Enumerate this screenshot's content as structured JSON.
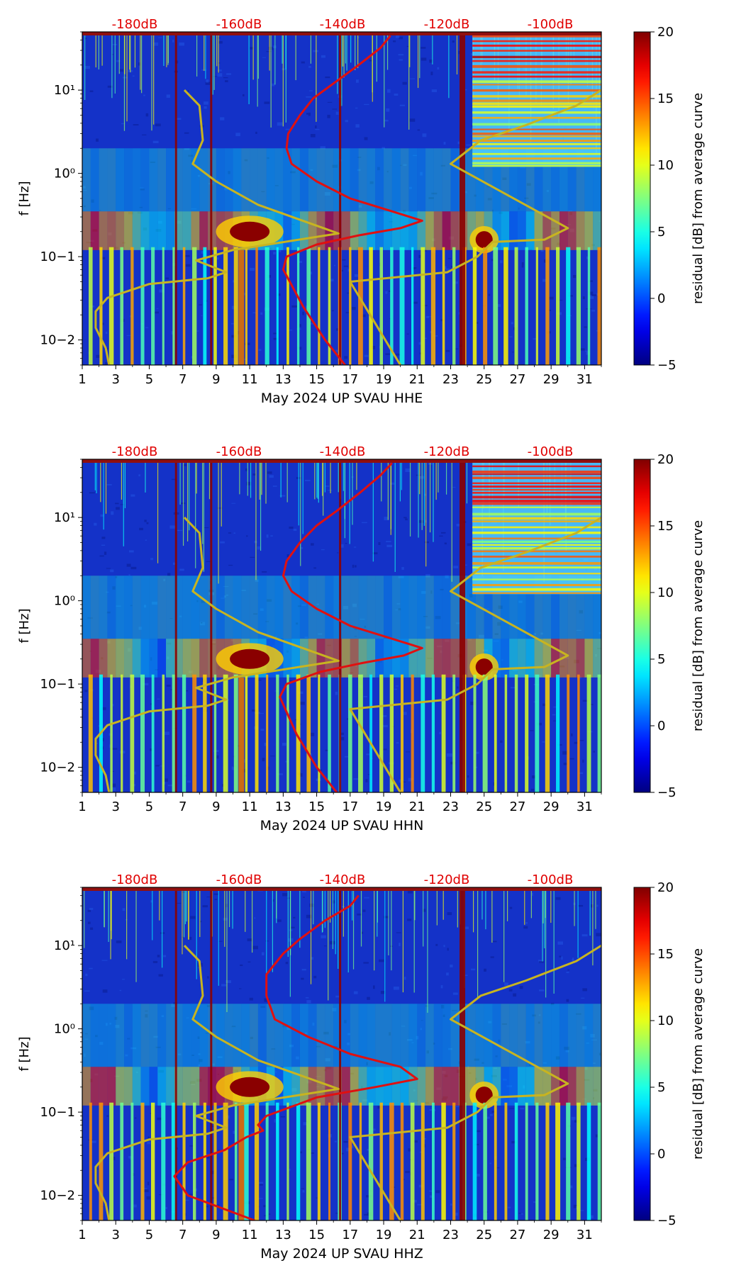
{
  "chart_data": [
    {
      "type": "heatmap",
      "title": "",
      "xlabel": "May 2024 UP SVAU  HHE",
      "ylabel": "f [Hz]",
      "x_ticks": [
        "1",
        "3",
        "5",
        "7",
        "9",
        "11",
        "13",
        "15",
        "17",
        "19",
        "21",
        "23",
        "25",
        "27",
        "29",
        "31"
      ],
      "xlim": [
        1,
        32
      ],
      "y_ticks": [
        "10−2",
        "10−1",
        "10⁰",
        "10¹"
      ],
      "ylim_hz": [
        0.005,
        50
      ],
      "yscale": "log",
      "top_axis_labels": [
        "-180dB",
        "-160dB",
        "-140dB",
        "-120dB",
        "-100dB"
      ],
      "colorbar": {
        "label": "residual [dB] from average curve",
        "ticks": [
          "−5",
          "0",
          "5",
          "10",
          "15",
          "20"
        ],
        "range": [
          -5,
          20
        ],
        "colormap": "jet"
      },
      "strong_residual_band": {
        "day_start": 24.3,
        "day_end": 32,
        "freq_min_hz": 1.2,
        "freq_max_hz": 50
      },
      "series": [
        {
          "name": "median PSD (red)",
          "color": "#e01010",
          "points": [
            [
              16.7,
              0.005
            ],
            [
              15.5,
              0.01
            ],
            [
              14.2,
              0.025
            ],
            [
              13.0,
              0.07
            ],
            [
              13.2,
              0.1
            ],
            [
              15.0,
              0.14
            ],
            [
              17.5,
              0.18
            ],
            [
              20.0,
              0.22
            ],
            [
              21.3,
              0.27
            ],
            [
              19.5,
              0.35
            ],
            [
              17.0,
              0.5
            ],
            [
              15.0,
              0.8
            ],
            [
              13.5,
              1.3
            ],
            [
              13.2,
              2.0
            ],
            [
              13.3,
              3.0
            ],
            [
              14.0,
              5.0
            ],
            [
              14.8,
              8.0
            ],
            [
              16.0,
              12.0
            ],
            [
              17.5,
              20.0
            ],
            [
              18.8,
              32.0
            ],
            [
              19.4,
              45.0
            ]
          ]
        },
        {
          "name": "noise model (yellow)",
          "color": "#c8b420",
          "points": [
            [
              2.6,
              0.005
            ],
            [
              2.4,
              0.008
            ],
            [
              1.8,
              0.014
            ],
            [
              1.8,
              0.022
            ],
            [
              2.5,
              0.032
            ],
            [
              5.0,
              0.047
            ],
            [
              8.5,
              0.055
            ],
            [
              9.6,
              0.065
            ],
            [
              7.8,
              0.09
            ],
            [
              10.0,
              0.12
            ],
            [
              16.3,
              0.19
            ],
            [
              11.5,
              0.42
            ],
            [
              9.0,
              0.8
            ],
            [
              7.6,
              1.3
            ],
            [
              8.2,
              2.5
            ],
            [
              8.0,
              6.5
            ],
            [
              7.1,
              10.0
            ]
          ]
        },
        {
          "name": "high noise model (yellow)",
          "color": "#c8b420",
          "points": [
            [
              20.0,
              0.005
            ],
            [
              17.0,
              0.05
            ],
            [
              22.8,
              0.065
            ],
            [
              24.6,
              0.1
            ],
            [
              25.5,
              0.15
            ],
            [
              28.6,
              0.16
            ],
            [
              30.0,
              0.22
            ],
            [
              23.0,
              1.3
            ],
            [
              24.8,
              2.5
            ],
            [
              27.5,
              3.8
            ],
            [
              30.5,
              6.5
            ],
            [
              32.0,
              10.0
            ]
          ]
        }
      ]
    },
    {
      "type": "heatmap",
      "title": "",
      "xlabel": "May 2024 UP SVAU  HHN",
      "ylabel": "f [Hz]",
      "x_ticks": [
        "1",
        "3",
        "5",
        "7",
        "9",
        "11",
        "13",
        "15",
        "17",
        "19",
        "21",
        "23",
        "25",
        "27",
        "29",
        "31"
      ],
      "xlim": [
        1,
        32
      ],
      "y_ticks": [
        "10−2",
        "10−1",
        "10⁰",
        "10¹"
      ],
      "ylim_hz": [
        0.005,
        50
      ],
      "yscale": "log",
      "top_axis_labels": [
        "-180dB",
        "-160dB",
        "-140dB",
        "-120dB",
        "-100dB"
      ],
      "colorbar": {
        "label": "residual [dB] from average curve",
        "ticks": [
          "−5",
          "0",
          "5",
          "10",
          "15",
          "20"
        ],
        "range": [
          -5,
          20
        ],
        "colormap": "jet"
      },
      "strong_residual_band": {
        "day_start": 24.3,
        "day_end": 32,
        "freq_min_hz": 1.2,
        "freq_max_hz": 50
      },
      "series": [
        {
          "name": "median PSD (red)",
          "color": "#e01010",
          "points": [
            [
              16.2,
              0.005
            ],
            [
              15.0,
              0.01
            ],
            [
              13.8,
              0.025
            ],
            [
              12.8,
              0.07
            ],
            [
              13.2,
              0.1
            ],
            [
              15.2,
              0.14
            ],
            [
              17.8,
              0.18
            ],
            [
              20.2,
              0.22
            ],
            [
              21.3,
              0.27
            ],
            [
              19.5,
              0.35
            ],
            [
              17.0,
              0.5
            ],
            [
              15.0,
              0.8
            ],
            [
              13.5,
              1.3
            ],
            [
              13.0,
              2.0
            ],
            [
              13.2,
              3.0
            ],
            [
              14.0,
              5.0
            ],
            [
              15.0,
              8.0
            ],
            [
              16.2,
              12.0
            ],
            [
              17.6,
              20.0
            ],
            [
              18.8,
              32.0
            ],
            [
              19.5,
              45.0
            ]
          ]
        },
        {
          "name": "noise model (yellow)",
          "color": "#c8b420",
          "points": [
            [
              2.6,
              0.005
            ],
            [
              2.4,
              0.008
            ],
            [
              1.8,
              0.014
            ],
            [
              1.8,
              0.022
            ],
            [
              2.5,
              0.032
            ],
            [
              5.0,
              0.047
            ],
            [
              8.5,
              0.055
            ],
            [
              9.6,
              0.065
            ],
            [
              7.8,
              0.09
            ],
            [
              10.0,
              0.12
            ],
            [
              16.3,
              0.19
            ],
            [
              11.5,
              0.42
            ],
            [
              9.0,
              0.8
            ],
            [
              7.6,
              1.3
            ],
            [
              8.2,
              2.5
            ],
            [
              8.0,
              6.5
            ],
            [
              7.1,
              10.0
            ]
          ]
        },
        {
          "name": "high noise model (yellow)",
          "color": "#c8b420",
          "points": [
            [
              20.0,
              0.005
            ],
            [
              17.0,
              0.05
            ],
            [
              22.8,
              0.065
            ],
            [
              24.6,
              0.1
            ],
            [
              25.5,
              0.15
            ],
            [
              28.6,
              0.16
            ],
            [
              30.0,
              0.22
            ],
            [
              23.0,
              1.3
            ],
            [
              24.8,
              2.5
            ],
            [
              27.5,
              3.8
            ],
            [
              30.5,
              6.5
            ],
            [
              32.0,
              10.0
            ]
          ]
        }
      ]
    },
    {
      "type": "heatmap",
      "title": "",
      "xlabel": "May 2024 UP SVAU  HHZ",
      "ylabel": "f [Hz]",
      "x_ticks": [
        "1",
        "3",
        "5",
        "7",
        "9",
        "11",
        "13",
        "15",
        "17",
        "19",
        "21",
        "23",
        "25",
        "27",
        "29",
        "31"
      ],
      "xlim": [
        1,
        32
      ],
      "y_ticks": [
        "10−2",
        "10−1",
        "10⁰",
        "10¹"
      ],
      "ylim_hz": [
        0.005,
        50
      ],
      "yscale": "log",
      "top_axis_labels": [
        "-180dB",
        "-160dB",
        "-140dB",
        "-120dB",
        "-100dB"
      ],
      "colorbar": {
        "label": "residual [dB] from average curve",
        "ticks": [
          "−5",
          "0",
          "5",
          "10",
          "15",
          "20"
        ],
        "range": [
          -5,
          20
        ],
        "colormap": "jet"
      },
      "strong_residual_band": null,
      "series": [
        {
          "name": "median PSD (red)",
          "color": "#e01010",
          "points": [
            [
              11.3,
              0.005
            ],
            [
              7.3,
              0.01
            ],
            [
              6.5,
              0.017
            ],
            [
              7.3,
              0.025
            ],
            [
              9.5,
              0.035
            ],
            [
              10.8,
              0.05
            ],
            [
              11.8,
              0.06
            ],
            [
              11.5,
              0.07
            ],
            [
              12.0,
              0.09
            ],
            [
              15.0,
              0.15
            ],
            [
              18.5,
              0.2
            ],
            [
              21.0,
              0.25
            ],
            [
              20.0,
              0.35
            ],
            [
              17.0,
              0.5
            ],
            [
              14.5,
              0.8
            ],
            [
              12.5,
              1.3
            ],
            [
              12.0,
              2.5
            ],
            [
              12.0,
              4.5
            ],
            [
              13.0,
              8.0
            ],
            [
              14.0,
              12.0
            ],
            [
              15.5,
              20.0
            ],
            [
              17.0,
              30.0
            ],
            [
              17.5,
              40.0
            ]
          ]
        },
        {
          "name": "noise model (yellow)",
          "color": "#c8b420",
          "points": [
            [
              2.6,
              0.005
            ],
            [
              2.4,
              0.008
            ],
            [
              1.8,
              0.014
            ],
            [
              1.8,
              0.022
            ],
            [
              2.5,
              0.032
            ],
            [
              5.0,
              0.047
            ],
            [
              8.5,
              0.055
            ],
            [
              9.6,
              0.065
            ],
            [
              7.8,
              0.09
            ],
            [
              10.0,
              0.12
            ],
            [
              16.3,
              0.19
            ],
            [
              11.5,
              0.42
            ],
            [
              9.0,
              0.8
            ],
            [
              7.6,
              1.3
            ],
            [
              8.2,
              2.5
            ],
            [
              8.0,
              6.5
            ],
            [
              7.1,
              10.0
            ]
          ]
        },
        {
          "name": "high noise model (yellow)",
          "color": "#c8b420",
          "points": [
            [
              20.0,
              0.005
            ],
            [
              17.0,
              0.05
            ],
            [
              22.8,
              0.065
            ],
            [
              24.6,
              0.1
            ],
            [
              25.5,
              0.15
            ],
            [
              28.6,
              0.16
            ],
            [
              30.0,
              0.22
            ],
            [
              23.0,
              1.3
            ],
            [
              24.8,
              2.5
            ],
            [
              27.5,
              3.8
            ],
            [
              30.5,
              6.5
            ],
            [
              32.0,
              10.0
            ]
          ]
        }
      ]
    }
  ]
}
